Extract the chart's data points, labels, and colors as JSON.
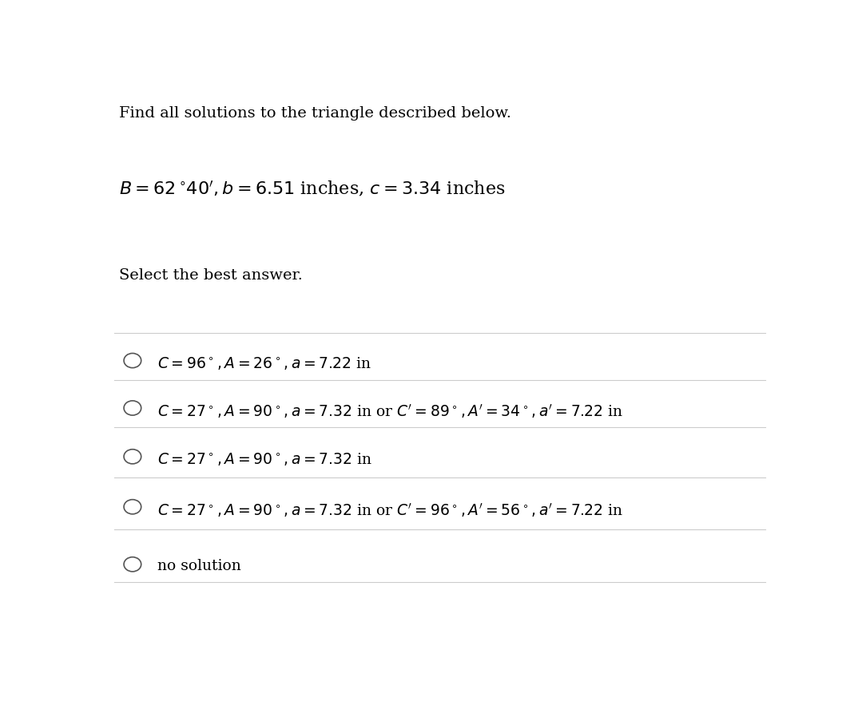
{
  "title_line": "Find all solutions to the triangle described below.",
  "select_text": "Select the best answer.",
  "options": [
    "$C = 96^\\circ, A = 26^\\circ, a = 7.22$ in",
    "$C = 27^\\circ, A = 90^\\circ, a = 7.32$ in or $C' = 89^\\circ, A' = 34^\\circ, a' = 7.22$ in",
    "$C = 27^\\circ, A = 90^\\circ, a = 7.32$ in",
    "$C = 27^\\circ, A = 90^\\circ, a = 7.32$ in or $C' = 96^\\circ, A' = 56^\\circ, a' = 7.22$ in",
    "no solution"
  ],
  "bg_color": "#ffffff",
  "text_color": "#000000",
  "line_color": "#cccccc",
  "circle_color": "#555555",
  "title_fontsize": 14,
  "option_fontsize": 13.5,
  "problem_fontsize": 16
}
